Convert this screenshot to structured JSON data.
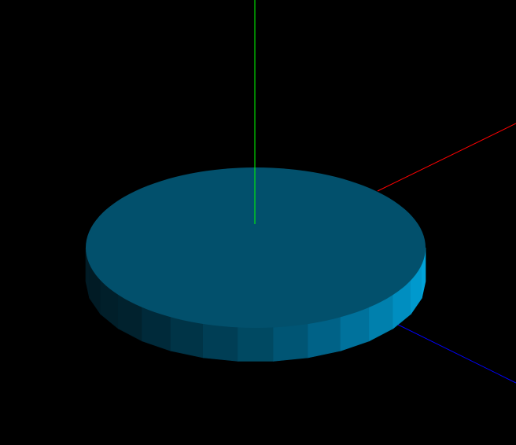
{
  "viewport": {
    "background": "#000000"
  },
  "axes": {
    "x": {
      "color": "#ff0000"
    },
    "y": {
      "color": "#00ff00"
    },
    "z": {
      "color": "#0000ff"
    }
  },
  "model": {
    "shape": "cylinder-disc",
    "top_color": "#02506c",
    "side_segment_colors": [
      "#011b25",
      "#011b25",
      "#011f2a",
      "#01222e",
      "#002a3a",
      "#003447",
      "#003e55",
      "#004962",
      "#005574",
      "#006287",
      "#00729c",
      "#0080ad",
      "#008ec0",
      "#0099cd",
      "#00a3d9"
    ]
  }
}
